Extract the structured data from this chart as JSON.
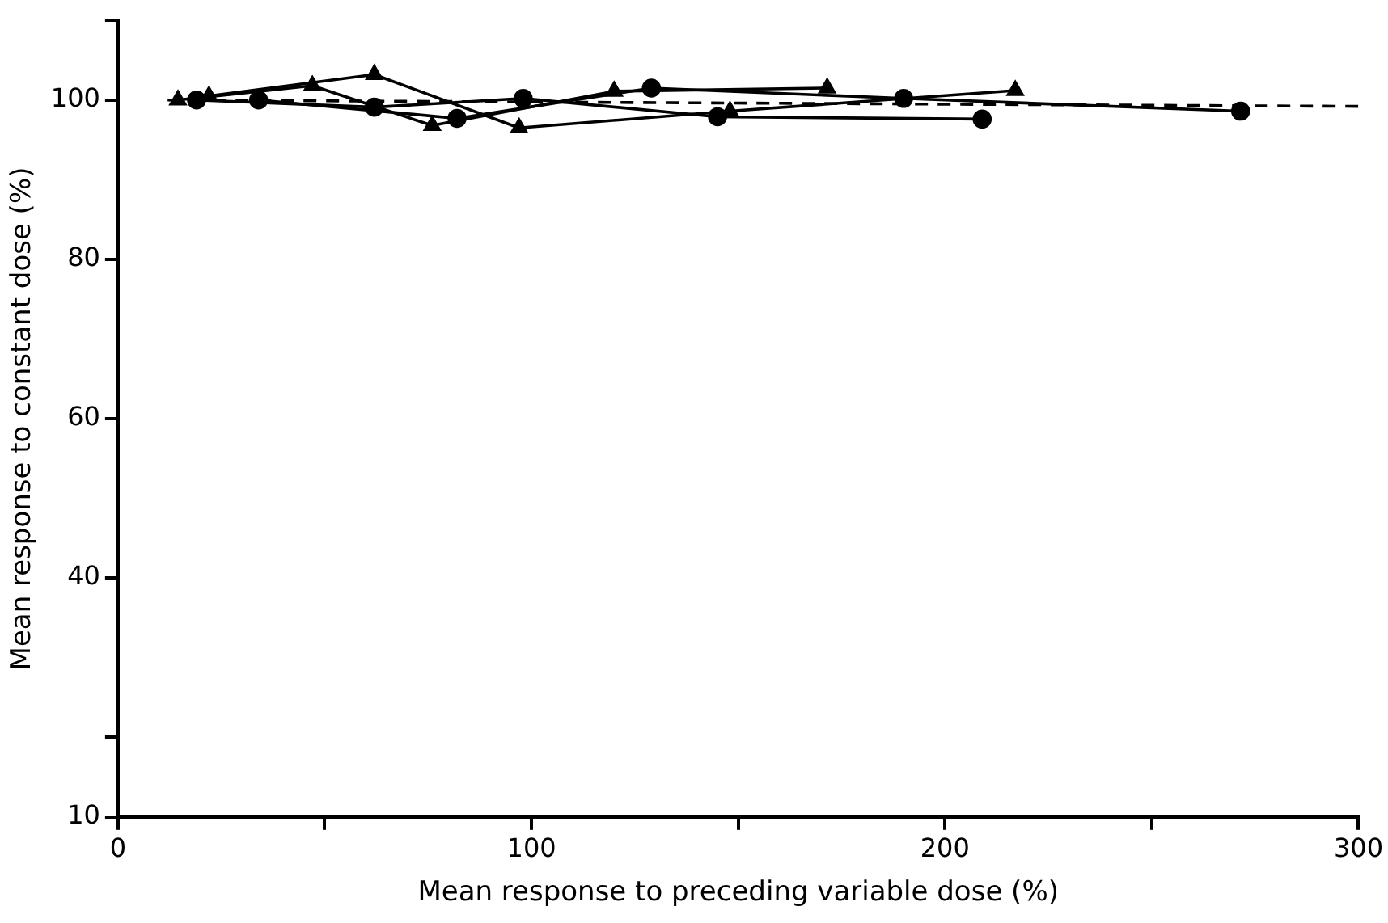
{
  "chart_data": {
    "type": "line",
    "xlabel": "Mean response to preceding variable dose (%)",
    "ylabel": "Mean response to constant dose (%)",
    "xlim": [
      0,
      300
    ],
    "xticks": [
      0,
      {
        "value": 50,
        "label": null
      },
      100,
      {
        "value": 150,
        "label": null
      },
      200,
      {
        "value": 250,
        "label": null
      },
      300
    ],
    "ylim": [
      10,
      110
    ],
    "yticks": [
      10,
      {
        "value": 20,
        "label": null
      },
      40,
      60,
      80,
      100,
      {
        "value": 110,
        "label": null
      }
    ],
    "grid": false,
    "legend": false,
    "series": [
      {
        "color": "#000000",
        "marker": "triangle",
        "x": [
          14.5,
          47,
          76,
          120,
          171.5
        ],
        "values": [
          100,
          101.8,
          96.8,
          101.1,
          101.5
        ]
      },
      {
        "color": "#000000",
        "marker": "triangle",
        "x": [
          22,
          62,
          97,
          148,
          217
        ],
        "values": [
          100.5,
          103.2,
          96.5,
          98.6,
          101.2
        ]
      },
      {
        "color": "#000000",
        "marker": "circle",
        "x": [
          19,
          62,
          98,
          145,
          209
        ],
        "values": [
          100,
          99.1,
          100.2,
          97.9,
          97.6
        ]
      },
      {
        "color": "#000000",
        "marker": "circle",
        "x": [
          34,
          82,
          129,
          190,
          271.5
        ],
        "values": [
          100,
          97.7,
          101.5,
          100.2,
          98.6
        ]
      },
      {
        "color": "#000000",
        "marker": "none",
        "line_style": "dashed",
        "x": [
          12,
          300
        ],
        "values": [
          100,
          99.2
        ]
      }
    ]
  }
}
